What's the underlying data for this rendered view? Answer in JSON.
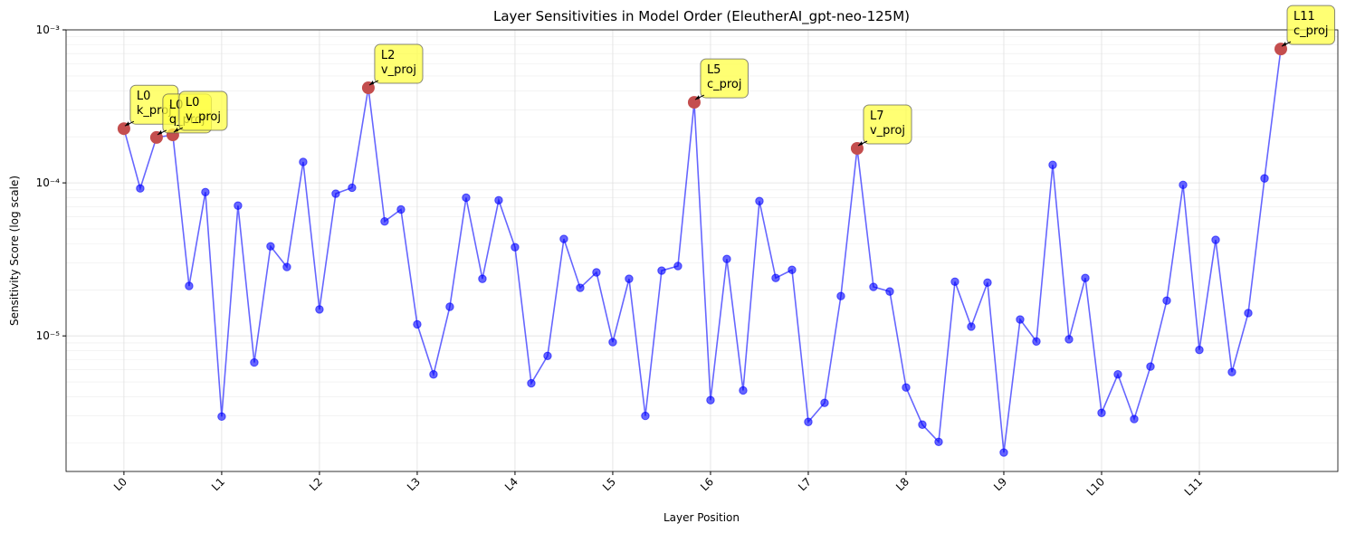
{
  "chart_data": {
    "type": "line",
    "title": "Layer Sensitivities in Model Order (EleutherAI_gpt-neo-125M)",
    "xlabel": "Layer Position",
    "ylabel": "Sensitivity Score (log scale)",
    "color": "#0000ff",
    "highlight_color": "#c44e4e",
    "yscale": "log",
    "grid": true,
    "x": [
      0,
      1,
      2,
      3,
      4,
      5,
      6,
      7,
      8,
      9,
      10,
      11,
      12,
      13,
      14,
      15,
      16,
      17,
      18,
      19,
      20,
      21,
      22,
      23,
      24,
      25,
      26,
      27,
      28,
      29,
      30,
      31,
      32,
      33,
      34,
      35,
      36,
      37,
      38,
      39,
      40,
      41,
      42,
      43,
      44,
      45,
      46,
      47,
      48,
      49,
      50,
      51,
      52,
      53,
      54,
      55,
      56,
      57,
      58,
      59,
      60,
      61,
      62,
      63,
      64,
      65,
      66,
      67,
      68,
      69,
      70,
      71
    ],
    "values": [
      0.000226,
      9.2e-05,
      0.000198,
      0.000206,
      2.12e-05,
      8.7e-05,
      2.97e-06,
      7.1e-05,
      6.7e-06,
      3.85e-05,
      2.82e-05,
      0.000137,
      1.49e-05,
      8.5e-05,
      9.3e-05,
      0.000418,
      5.6e-05,
      6.7e-05,
      1.19e-05,
      5.6e-06,
      1.55e-05,
      8e-05,
      2.36e-05,
      7.7e-05,
      3.8e-05,
      4.9e-06,
      7.4e-06,
      4.3e-05,
      2.06e-05,
      2.6e-05,
      9.1e-06,
      2.36e-05,
      3e-06,
      2.67e-05,
      2.86e-05,
      0.000336,
      3.8e-06,
      3.18e-05,
      4.4e-06,
      7.6e-05,
      2.39e-05,
      2.7e-05,
      2.74e-06,
      3.65e-06,
      1.82e-05,
      0.000168,
      2.09e-05,
      1.95e-05,
      4.6e-06,
      2.63e-06,
      2.03e-06,
      2.26e-05,
      1.15e-05,
      2.23e-05,
      1.73e-06,
      1.28e-05,
      9.2e-06,
      0.000131,
      9.5e-06,
      2.39e-05,
      3.14e-06,
      5.6e-06,
      2.86e-06,
      6.3e-06,
      1.7e-05,
      9.7e-05,
      8.1e-06,
      4.24e-05,
      5.8e-06,
      1.41e-05,
      0.000107,
      0.00075
    ],
    "xlim": [
      -3.55,
      74.5
    ],
    "xticks": [
      {
        "value": 0,
        "label": "L0"
      },
      {
        "value": 6,
        "label": "L1"
      },
      {
        "value": 12,
        "label": "L2"
      },
      {
        "value": 18,
        "label": "L3"
      },
      {
        "value": 24,
        "label": "L4"
      },
      {
        "value": 30,
        "label": "L5"
      },
      {
        "value": 36,
        "label": "L6"
      },
      {
        "value": 42,
        "label": "L7"
      },
      {
        "value": 48,
        "label": "L8"
      },
      {
        "value": 54,
        "label": "L9"
      },
      {
        "value": 60,
        "label": "L10"
      },
      {
        "value": 66,
        "label": "L11"
      }
    ],
    "ylim": [
      1.3e-06,
      0.001
    ],
    "yticks": [
      {
        "value": 1e-05,
        "label": "10⁻⁵"
      },
      {
        "value": 0.0001,
        "label": "10⁻⁴"
      },
      {
        "value": 0.001,
        "label": "10⁻³"
      }
    ],
    "yminorticks": [
      2e-06,
      3e-06,
      4e-06,
      5e-06,
      6e-06,
      7e-06,
      8e-06,
      9e-06,
      2e-05,
      3e-05,
      4e-05,
      5e-05,
      6e-05,
      7e-05,
      8e-05,
      9e-05,
      0.0002,
      0.0003,
      0.0004,
      0.0005,
      0.0006,
      0.0007,
      0.0008,
      0.0009
    ],
    "annotations": [
      {
        "x": 0,
        "lines": [
          "L0",
          "k_proj"
        ]
      },
      {
        "x": 2,
        "lines": [
          "L0",
          "q_proj"
        ]
      },
      {
        "x": 3,
        "lines": [
          "L0",
          "v_proj"
        ]
      },
      {
        "x": 15,
        "lines": [
          "L2",
          "v_proj"
        ]
      },
      {
        "x": 35,
        "lines": [
          "L5",
          "c_proj"
        ]
      },
      {
        "x": 45,
        "lines": [
          "L7",
          "v_proj"
        ]
      },
      {
        "x": 71,
        "lines": [
          "L11",
          "c_proj"
        ]
      }
    ]
  }
}
